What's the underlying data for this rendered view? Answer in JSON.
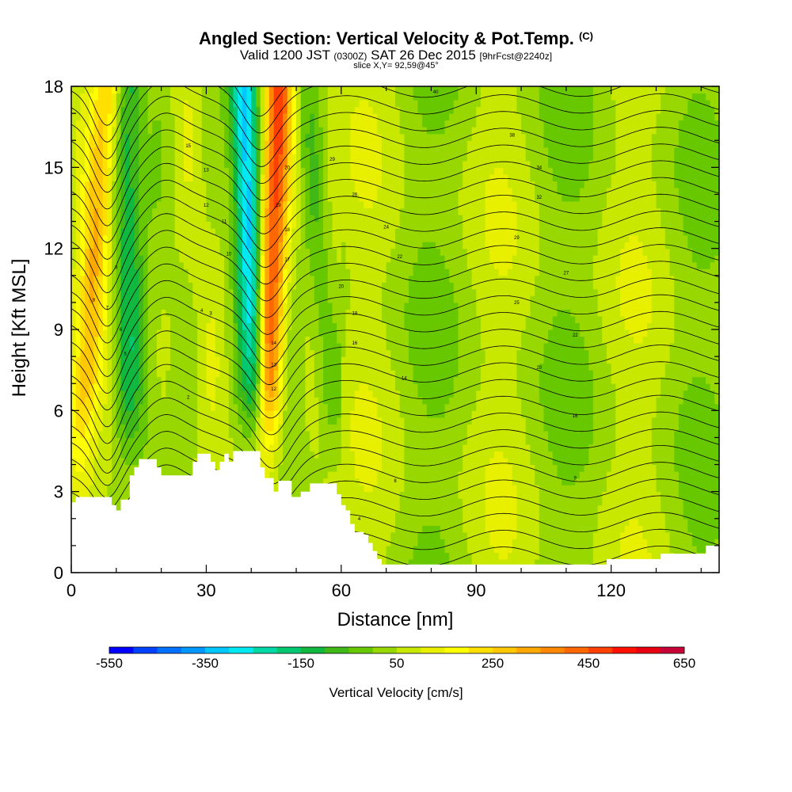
{
  "title": {
    "main": "Angled Section: Vertical Velocity & Pot.Temp.",
    "tag": "(C)",
    "valid_prefix": "Valid 1200 JST",
    "valid_z": "(0300Z)",
    "valid_date": "SAT 26 Dec 2015",
    "forecast": "[9hrFcst@2240z]",
    "slice": "slice X,Y= 92,59@45°"
  },
  "chart_data": {
    "type": "heatmap",
    "xlabel": "Distance [nm]",
    "ylabel": "Height [Kft MSL]",
    "xlim": [
      0,
      144
    ],
    "ylim": [
      0,
      18
    ],
    "x_ticks": [
      0,
      30,
      60,
      90,
      120
    ],
    "y_ticks": [
      0,
      3,
      6,
      9,
      12,
      15,
      18
    ],
    "x_minor_step": 10,
    "y_minor_step": 1,
    "field": "Vertical Velocity [cm/s]",
    "colorbar": {
      "title": "Vertical Velocity [cm/s]",
      "labels": [
        "-550",
        "-350",
        "-150",
        "50",
        "250",
        "450",
        "650"
      ],
      "min": -550,
      "max": 650,
      "step": 50,
      "colors": [
        "#0000ff",
        "#0040ff",
        "#0070ff",
        "#0098ff",
        "#00c8ff",
        "#00e8f0",
        "#00d8a8",
        "#00c870",
        "#10b840",
        "#40b818",
        "#68c800",
        "#98d800",
        "#c8e800",
        "#e8f000",
        "#ffff00",
        "#ffe000",
        "#ffc800",
        "#ffa800",
        "#ff8800",
        "#ff6800",
        "#ff4000",
        "#ff1000",
        "#e80010",
        "#c80038"
      ]
    },
    "updraft_bands": [
      {
        "x_top": 8,
        "x_bottom": 0,
        "value": 250
      },
      {
        "x_top": 46,
        "x_bottom": 42,
        "value": 450
      }
    ],
    "downdraft_bands": [
      {
        "x_top": 38,
        "x_bottom": 43,
        "value": -350
      },
      {
        "x_top": 13,
        "x_bottom": 12,
        "value": -150
      },
      {
        "x_top": 52,
        "x_bottom": 60,
        "value": -100
      }
    ],
    "terrain_kft": [
      [
        0,
        2.6
      ],
      [
        1,
        2.8
      ],
      [
        8,
        2.8
      ],
      [
        9,
        2.5
      ],
      [
        10,
        2.3
      ],
      [
        11,
        2.7
      ],
      [
        12,
        2.7
      ],
      [
        13,
        3.6
      ],
      [
        14,
        3.9
      ],
      [
        15,
        4.2
      ],
      [
        18,
        4.2
      ],
      [
        19,
        3.9
      ],
      [
        20,
        3.6
      ],
      [
        26,
        3.6
      ],
      [
        27,
        4.1
      ],
      [
        28,
        4.4
      ],
      [
        30,
        4.4
      ],
      [
        31,
        4.1
      ],
      [
        32,
        3.8
      ],
      [
        33,
        4.1
      ],
      [
        34,
        4.4
      ],
      [
        35,
        4.1
      ],
      [
        36,
        4.5
      ],
      [
        41,
        4.5
      ],
      [
        42,
        3.9
      ],
      [
        43,
        3.5
      ],
      [
        45,
        3.0
      ],
      [
        46,
        3.4
      ],
      [
        49,
        2.8
      ],
      [
        51,
        3.0
      ],
      [
        53,
        3.3
      ],
      [
        58,
        3.3
      ],
      [
        59,
        2.9
      ],
      [
        60,
        2.5
      ],
      [
        61,
        2.3
      ],
      [
        62,
        1.8
      ],
      [
        63,
        1.5
      ],
      [
        64,
        1.5
      ],
      [
        65,
        1.4
      ],
      [
        66,
        1.1
      ],
      [
        67,
        0.8
      ],
      [
        68,
        0.5
      ],
      [
        69,
        0.3
      ],
      [
        118,
        0.3
      ],
      [
        119,
        0.5
      ],
      [
        130,
        0.5
      ],
      [
        131,
        0.7
      ],
      [
        140,
        0.7
      ],
      [
        141,
        1.0
      ],
      [
        144,
        1.3
      ]
    ],
    "theta_contour_labels": [
      {
        "x": 26,
        "y": 15.8,
        "text": "15"
      },
      {
        "x": 30,
        "y": 14.9,
        "text": "13"
      },
      {
        "x": 30,
        "y": 13.6,
        "text": "12"
      },
      {
        "x": 34,
        "y": 13.0,
        "text": "11"
      },
      {
        "x": 35,
        "y": 11.8,
        "text": "10"
      },
      {
        "x": 10,
        "y": 11.3,
        "text": "9"
      },
      {
        "x": 5,
        "y": 10.1,
        "text": "8"
      },
      {
        "x": 8,
        "y": 9.8,
        "text": "7"
      },
      {
        "x": 11,
        "y": 9.0,
        "text": "6"
      },
      {
        "x": 12,
        "y": 8.1,
        "text": "5"
      },
      {
        "x": 29,
        "y": 9.7,
        "text": "4"
      },
      {
        "x": 31,
        "y": 9.6,
        "text": "3"
      },
      {
        "x": 26,
        "y": 6.5,
        "text": "2"
      },
      {
        "x": 48,
        "y": 15.0,
        "text": "20"
      },
      {
        "x": 46,
        "y": 13.6,
        "text": "19"
      },
      {
        "x": 48,
        "y": 12.7,
        "text": "18"
      },
      {
        "x": 48,
        "y": 11.6,
        "text": "17"
      },
      {
        "x": 45,
        "y": 8.5,
        "text": "14"
      },
      {
        "x": 45,
        "y": 7.7,
        "text": "13"
      },
      {
        "x": 45,
        "y": 6.8,
        "text": "12"
      },
      {
        "x": 58,
        "y": 15.3,
        "text": "29"
      },
      {
        "x": 63,
        "y": 14.0,
        "text": "26"
      },
      {
        "x": 70,
        "y": 12.8,
        "text": "24"
      },
      {
        "x": 73,
        "y": 11.7,
        "text": "22"
      },
      {
        "x": 60,
        "y": 10.6,
        "text": "20"
      },
      {
        "x": 63,
        "y": 9.6,
        "text": "18"
      },
      {
        "x": 63,
        "y": 8.5,
        "text": "16"
      },
      {
        "x": 74,
        "y": 7.2,
        "text": "14"
      },
      {
        "x": 72,
        "y": 3.4,
        "text": "8"
      },
      {
        "x": 64,
        "y": 2.0,
        "text": "4"
      },
      {
        "x": 81,
        "y": 17.8,
        "text": "40"
      },
      {
        "x": 98,
        "y": 16.2,
        "text": "38"
      },
      {
        "x": 104,
        "y": 15.0,
        "text": "34"
      },
      {
        "x": 104,
        "y": 13.9,
        "text": "32"
      },
      {
        "x": 99,
        "y": 12.4,
        "text": "29"
      },
      {
        "x": 110,
        "y": 11.1,
        "text": "27"
      },
      {
        "x": 99,
        "y": 10.0,
        "text": "25"
      },
      {
        "x": 112,
        "y": 8.8,
        "text": "22"
      },
      {
        "x": 104,
        "y": 7.6,
        "text": "20"
      },
      {
        "x": 112,
        "y": 5.8,
        "text": "16"
      },
      {
        "x": 112,
        "y": 3.5,
        "text": "9"
      }
    ]
  }
}
